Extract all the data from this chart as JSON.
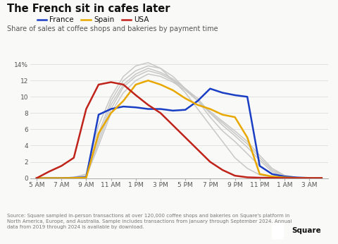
{
  "title": "The French sit in cafes later",
  "subtitle": "Share of sales at coffee shops and bakeries by payment time",
  "source_text": "Source: Square sampled in-person transactions at over 120,000 coffee shops and bakeries on Square's platform in\nNorth America, Europe, and Australia. Sample includes transactions from January through September 2024. Annual\ndata from 2019 through 2024 is available by download.",
  "x_labels": [
    "5 AM",
    "7 AM",
    "9 AM",
    "11 AM",
    "1 PM",
    "3 PM",
    "5 PM",
    "7 PM",
    "9 PM",
    "11 PM",
    "1 AM",
    "3 AM"
  ],
  "france_color": "#1a3ec4",
  "spain_color": "#e8a800",
  "usa_color": "#c0231a",
  "grey_color": "#c8c8c8",
  "france": [
    0.0,
    0.0,
    0.0,
    0.05,
    0.1,
    7.8,
    8.5,
    8.8,
    8.7,
    8.5,
    8.5,
    8.3,
    8.4,
    9.5,
    11.0,
    10.5,
    10.2,
    10.0,
    1.5,
    0.5,
    0.2,
    0.08,
    0.02,
    0.0
  ],
  "spain": [
    0.0,
    0.0,
    0.0,
    0.02,
    0.05,
    5.5,
    8.0,
    9.5,
    11.5,
    12.0,
    11.5,
    10.8,
    9.8,
    9.0,
    8.5,
    7.8,
    7.5,
    5.0,
    0.5,
    0.2,
    0.08,
    0.02,
    0.0,
    0.0
  ],
  "usa": [
    0.0,
    0.8,
    1.5,
    2.5,
    8.5,
    11.5,
    11.8,
    11.5,
    10.2,
    9.0,
    8.0,
    6.5,
    5.0,
    3.5,
    2.0,
    1.0,
    0.3,
    0.1,
    0.05,
    0.02,
    0.0,
    0.0,
    0.0,
    0.0
  ],
  "grey1": [
    0.0,
    0.0,
    0.0,
    0.1,
    0.5,
    6.5,
    10.0,
    12.5,
    13.8,
    14.2,
    13.5,
    12.0,
    10.5,
    8.5,
    6.5,
    4.5,
    2.5,
    1.2,
    0.4,
    0.1,
    0.02,
    0.0,
    0.0,
    0.0
  ],
  "grey2": [
    0.0,
    0.0,
    0.0,
    0.05,
    0.3,
    5.5,
    9.5,
    12.0,
    13.2,
    13.8,
    13.5,
    12.5,
    11.0,
    9.5,
    7.5,
    5.8,
    4.5,
    3.0,
    1.5,
    0.5,
    0.1,
    0.02,
    0.0,
    0.0
  ],
  "grey3": [
    0.0,
    0.0,
    0.0,
    0.05,
    0.3,
    5.0,
    9.0,
    11.5,
    12.8,
    13.5,
    13.0,
    12.2,
    11.0,
    9.8,
    8.0,
    6.5,
    5.2,
    3.8,
    2.2,
    0.8,
    0.2,
    0.05,
    0.0,
    0.0
  ],
  "grey4": [
    0.0,
    0.0,
    0.0,
    0.05,
    0.2,
    4.5,
    8.5,
    11.2,
    12.5,
    13.2,
    12.8,
    12.0,
    11.0,
    9.5,
    8.0,
    6.8,
    5.5,
    4.2,
    2.5,
    1.0,
    0.3,
    0.08,
    0.0,
    0.0
  ],
  "grey5": [
    0.0,
    0.0,
    0.0,
    0.02,
    0.2,
    4.0,
    8.0,
    10.5,
    12.0,
    12.8,
    12.5,
    11.8,
    10.8,
    9.5,
    8.2,
    7.0,
    5.8,
    4.5,
    2.8,
    1.2,
    0.35,
    0.08,
    0.0,
    0.0
  ],
  "bg_color": "#f9f9f7"
}
